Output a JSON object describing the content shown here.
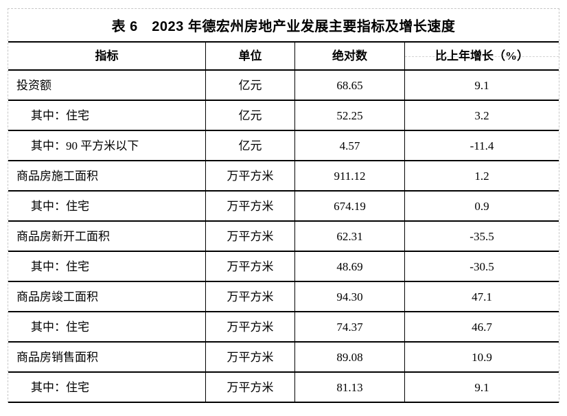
{
  "table": {
    "title": "表 6　2023 年德宏州房地产业发展主要指标及增长速度",
    "columns": [
      "指标",
      "单位",
      "绝对数",
      "比上年增长（%）"
    ],
    "rows": [
      {
        "indicator": "投资额",
        "indent": false,
        "unit": "亿元",
        "absolute": "68.65",
        "growth": "9.1"
      },
      {
        "indicator": "其中：住宅",
        "indent": true,
        "unit": "亿元",
        "absolute": "52.25",
        "growth": "3.2"
      },
      {
        "indicator": "其中：90 平方米以下",
        "indent": true,
        "unit": "亿元",
        "absolute": "4.57",
        "growth": "-11.4"
      },
      {
        "indicator": "商品房施工面积",
        "indent": false,
        "unit": "万平方米",
        "absolute": "911.12",
        "growth": "1.2"
      },
      {
        "indicator": "其中：住宅",
        "indent": true,
        "unit": "万平方米",
        "absolute": "674.19",
        "growth": "0.9"
      },
      {
        "indicator": "商品房新开工面积",
        "indent": false,
        "unit": "万平方米",
        "absolute": "62.31",
        "growth": "-35.5"
      },
      {
        "indicator": "其中：住宅",
        "indent": true,
        "unit": "万平方米",
        "absolute": "48.69",
        "growth": "-30.5"
      },
      {
        "indicator": "商品房竣工面积",
        "indent": false,
        "unit": "万平方米",
        "absolute": "94.30",
        "growth": "47.1"
      },
      {
        "indicator": "其中：住宅",
        "indent": true,
        "unit": "万平方米",
        "absolute": "74.37",
        "growth": "46.7"
      },
      {
        "indicator": "商品房销售面积",
        "indent": false,
        "unit": "万平方米",
        "absolute": "89.08",
        "growth": "10.9"
      },
      {
        "indicator": "其中：住宅",
        "indent": true,
        "unit": "万平方米",
        "absolute": "81.13",
        "growth": "9.1"
      }
    ]
  },
  "colors": {
    "text": "#000000",
    "solid_border": "#000000",
    "dashed_border": "#c6c6c6",
    "background": "#ffffff"
  }
}
